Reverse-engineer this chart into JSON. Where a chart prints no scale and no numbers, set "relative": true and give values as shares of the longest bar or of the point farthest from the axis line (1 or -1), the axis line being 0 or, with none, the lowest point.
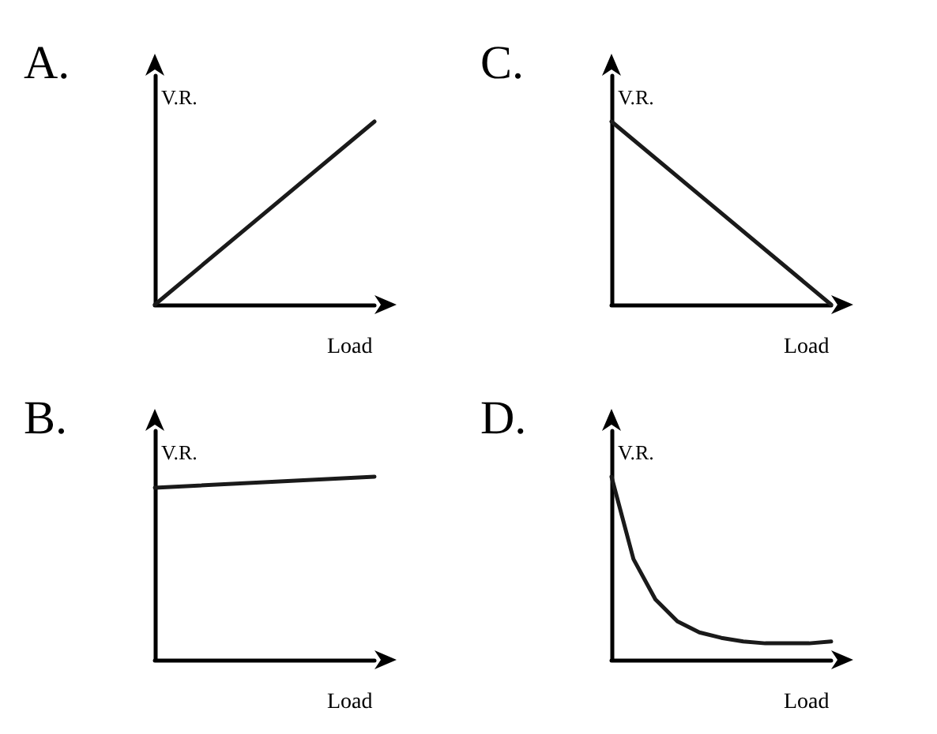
{
  "chart_data": [
    {
      "type": "line",
      "title": "A.",
      "ylabel": "V.R.",
      "xlabel": "Load",
      "relative": true,
      "categories": [
        null,
        null
      ],
      "series": [
        {
          "color": "#1a1a1a",
          "values": [
            0,
            1
          ]
        }
      ]
    },
    {
      "type": "line",
      "title": "C.",
      "ylabel": "V.R.",
      "xlabel": "Load",
      "relative": true,
      "categories": [
        null,
        null
      ],
      "series": [
        {
          "color": "#1a1a1a",
          "values": [
            1,
            0
          ]
        }
      ]
    },
    {
      "type": "line",
      "title": "B.",
      "ylabel": "V.R.",
      "xlabel": "Load",
      "relative": true,
      "categories": [
        null,
        null
      ],
      "series": [
        {
          "color": "#1a1a1a",
          "values": [
            0.94,
            1
          ]
        }
      ]
    },
    {
      "type": "line",
      "title": "D.",
      "ylabel": "V.R.",
      "xlabel": "Load",
      "relative": true,
      "categories": [
        null,
        null,
        null,
        null,
        null,
        null,
        null,
        null,
        null,
        null,
        null
      ],
      "series": [
        {
          "color": "#1a1a1a",
          "values": [
            1,
            0.55,
            0.33,
            0.21,
            0.15,
            0.12,
            0.1,
            0.09,
            0.09,
            0.09,
            0.1
          ]
        }
      ]
    }
  ]
}
